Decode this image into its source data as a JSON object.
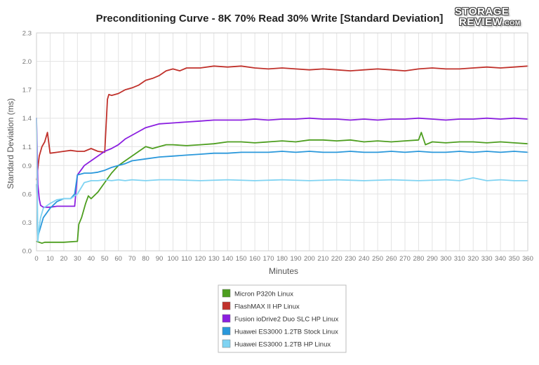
{
  "chart_data": {
    "type": "line",
    "title": "Preconditioning Curve - 8K 70% Read 30% Write [Standard Deviation]",
    "xlabel": "Minutes",
    "ylabel": "Standard Deviation (ms)",
    "xlim": [
      0,
      360
    ],
    "ylim": [
      0,
      2.3
    ],
    "xticks": [
      0,
      10,
      20,
      30,
      40,
      50,
      60,
      70,
      80,
      90,
      100,
      110,
      120,
      130,
      140,
      150,
      160,
      170,
      180,
      190,
      200,
      210,
      220,
      230,
      240,
      250,
      260,
      270,
      280,
      290,
      300,
      310,
      320,
      330,
      340,
      350,
      360
    ],
    "xtick_labels": [
      "0",
      "10",
      "20",
      "30",
      "40",
      "50",
      "60",
      "70",
      "80",
      "90",
      "100",
      "110",
      "120",
      "130",
      "140",
      "150",
      "160",
      "170",
      "180",
      "190",
      "200",
      "210",
      "220",
      "230",
      "240",
      "250",
      "260",
      "270",
      "280",
      "290",
      "300",
      "310",
      "320",
      "330",
      "340",
      "350",
      "360"
    ],
    "yticks": [
      0,
      0.3,
      0.6,
      0.9,
      1.1,
      1.4,
      1.7,
      2.0,
      2.3
    ],
    "ytick_labels": [
      "0.0",
      "0.3",
      "0.6",
      "0.9",
      "1.1",
      "1.4",
      "1.7",
      "2.0",
      "2.3"
    ],
    "grid": true,
    "legend_position": "bottom-center",
    "series": [
      {
        "name": "Micron P320h Linux",
        "color": "#4d9e1f",
        "x": [
          0,
          2,
          4,
          6,
          10,
          20,
          30,
          31,
          33,
          36,
          38,
          40,
          45,
          50,
          55,
          60,
          65,
          70,
          75,
          80,
          85,
          90,
          95,
          100,
          110,
          120,
          130,
          140,
          150,
          160,
          170,
          180,
          190,
          200,
          210,
          220,
          230,
          240,
          250,
          260,
          270,
          280,
          282,
          285,
          290,
          300,
          310,
          320,
          330,
          340,
          350,
          360
        ],
        "y": [
          0.1,
          0.09,
          0.08,
          0.09,
          0.09,
          0.09,
          0.1,
          0.28,
          0.35,
          0.5,
          0.58,
          0.55,
          0.62,
          0.72,
          0.82,
          0.9,
          0.95,
          1.0,
          1.05,
          1.1,
          1.08,
          1.1,
          1.12,
          1.12,
          1.11,
          1.12,
          1.13,
          1.15,
          1.15,
          1.14,
          1.15,
          1.16,
          1.15,
          1.17,
          1.17,
          1.16,
          1.17,
          1.15,
          1.16,
          1.15,
          1.16,
          1.17,
          1.25,
          1.12,
          1.15,
          1.14,
          1.15,
          1.15,
          1.14,
          1.15,
          1.14,
          1.13
        ]
      },
      {
        "name": "FlashMAX II HP Linux",
        "color": "#c0312b",
        "x": [
          0,
          2,
          4,
          6,
          8,
          10,
          15,
          20,
          25,
          30,
          35,
          40,
          45,
          50,
          52,
          53,
          55,
          60,
          65,
          70,
          75,
          80,
          85,
          90,
          95,
          100,
          105,
          110,
          120,
          130,
          140,
          150,
          160,
          170,
          180,
          190,
          200,
          210,
          220,
          230,
          240,
          250,
          260,
          270,
          280,
          290,
          300,
          310,
          320,
          330,
          340,
          350,
          360
        ],
        "y": [
          0.75,
          1.0,
          1.1,
          1.15,
          1.25,
          1.03,
          1.04,
          1.05,
          1.06,
          1.05,
          1.05,
          1.08,
          1.05,
          1.04,
          1.6,
          1.65,
          1.64,
          1.66,
          1.7,
          1.72,
          1.75,
          1.8,
          1.82,
          1.85,
          1.9,
          1.92,
          1.9,
          1.93,
          1.93,
          1.95,
          1.94,
          1.95,
          1.93,
          1.92,
          1.93,
          1.92,
          1.91,
          1.92,
          1.91,
          1.9,
          1.91,
          1.92,
          1.91,
          1.9,
          1.92,
          1.93,
          1.92,
          1.92,
          1.93,
          1.94,
          1.93,
          1.94,
          1.95
        ]
      },
      {
        "name": "Fusion ioDrive2 Duo SLC HP Linux",
        "color": "#8b1fe0",
        "x": [
          0,
          1,
          2,
          3,
          5,
          10,
          15,
          20,
          25,
          28,
          30,
          35,
          40,
          45,
          50,
          55,
          60,
          65,
          70,
          75,
          80,
          85,
          90,
          100,
          110,
          120,
          130,
          140,
          150,
          160,
          170,
          180,
          190,
          200,
          210,
          220,
          230,
          240,
          250,
          260,
          270,
          280,
          290,
          300,
          310,
          320,
          330,
          340,
          350,
          360
        ],
        "y": [
          1.4,
          0.7,
          0.55,
          0.48,
          0.46,
          0.46,
          0.47,
          0.47,
          0.47,
          0.47,
          0.8,
          0.9,
          0.95,
          1.0,
          1.05,
          1.08,
          1.12,
          1.18,
          1.22,
          1.26,
          1.3,
          1.32,
          1.34,
          1.35,
          1.36,
          1.37,
          1.38,
          1.38,
          1.38,
          1.39,
          1.38,
          1.39,
          1.39,
          1.4,
          1.39,
          1.39,
          1.38,
          1.39,
          1.38,
          1.39,
          1.39,
          1.4,
          1.39,
          1.38,
          1.39,
          1.39,
          1.4,
          1.39,
          1.4,
          1.39
        ]
      },
      {
        "name": "Huawei ES3000 1.2TB Stock Linux",
        "color": "#2a98db",
        "x": [
          0,
          1,
          3,
          5,
          10,
          15,
          20,
          23,
          25,
          28,
          30,
          35,
          40,
          45,
          50,
          55,
          60,
          65,
          70,
          80,
          90,
          100,
          110,
          120,
          130,
          140,
          150,
          160,
          170,
          180,
          190,
          200,
          210,
          220,
          230,
          240,
          250,
          260,
          270,
          280,
          290,
          300,
          310,
          320,
          330,
          340,
          350,
          360
        ],
        "y": [
          0.7,
          0.15,
          0.25,
          0.35,
          0.45,
          0.52,
          0.55,
          0.55,
          0.55,
          0.6,
          0.8,
          0.82,
          0.82,
          0.83,
          0.85,
          0.88,
          0.9,
          0.92,
          0.95,
          0.97,
          0.99,
          1.0,
          1.01,
          1.02,
          1.03,
          1.03,
          1.04,
          1.04,
          1.04,
          1.05,
          1.04,
          1.05,
          1.04,
          1.04,
          1.05,
          1.04,
          1.04,
          1.05,
          1.04,
          1.05,
          1.04,
          1.04,
          1.05,
          1.04,
          1.05,
          1.04,
          1.05,
          1.04
        ]
      },
      {
        "name": "Huawei ES3000 1.2TB HP Linux",
        "color": "#7fd3f2",
        "x": [
          0,
          1,
          2,
          3,
          5,
          10,
          15,
          20,
          25,
          30,
          35,
          40,
          45,
          50,
          55,
          60,
          65,
          70,
          80,
          90,
          100,
          120,
          140,
          160,
          180,
          200,
          220,
          240,
          260,
          280,
          300,
          310,
          320,
          330,
          340,
          350,
          360
        ],
        "y": [
          1.4,
          0.1,
          0.25,
          0.35,
          0.45,
          0.5,
          0.54,
          0.55,
          0.55,
          0.6,
          0.72,
          0.74,
          0.74,
          0.75,
          0.74,
          0.75,
          0.74,
          0.75,
          0.74,
          0.75,
          0.75,
          0.74,
          0.75,
          0.74,
          0.75,
          0.74,
          0.75,
          0.74,
          0.75,
          0.74,
          0.75,
          0.74,
          0.77,
          0.74,
          0.75,
          0.74,
          0.74
        ]
      }
    ]
  },
  "logo": {
    "line1": "STORAGE",
    "line2": "REVIEW",
    "suffix": ".COM"
  }
}
